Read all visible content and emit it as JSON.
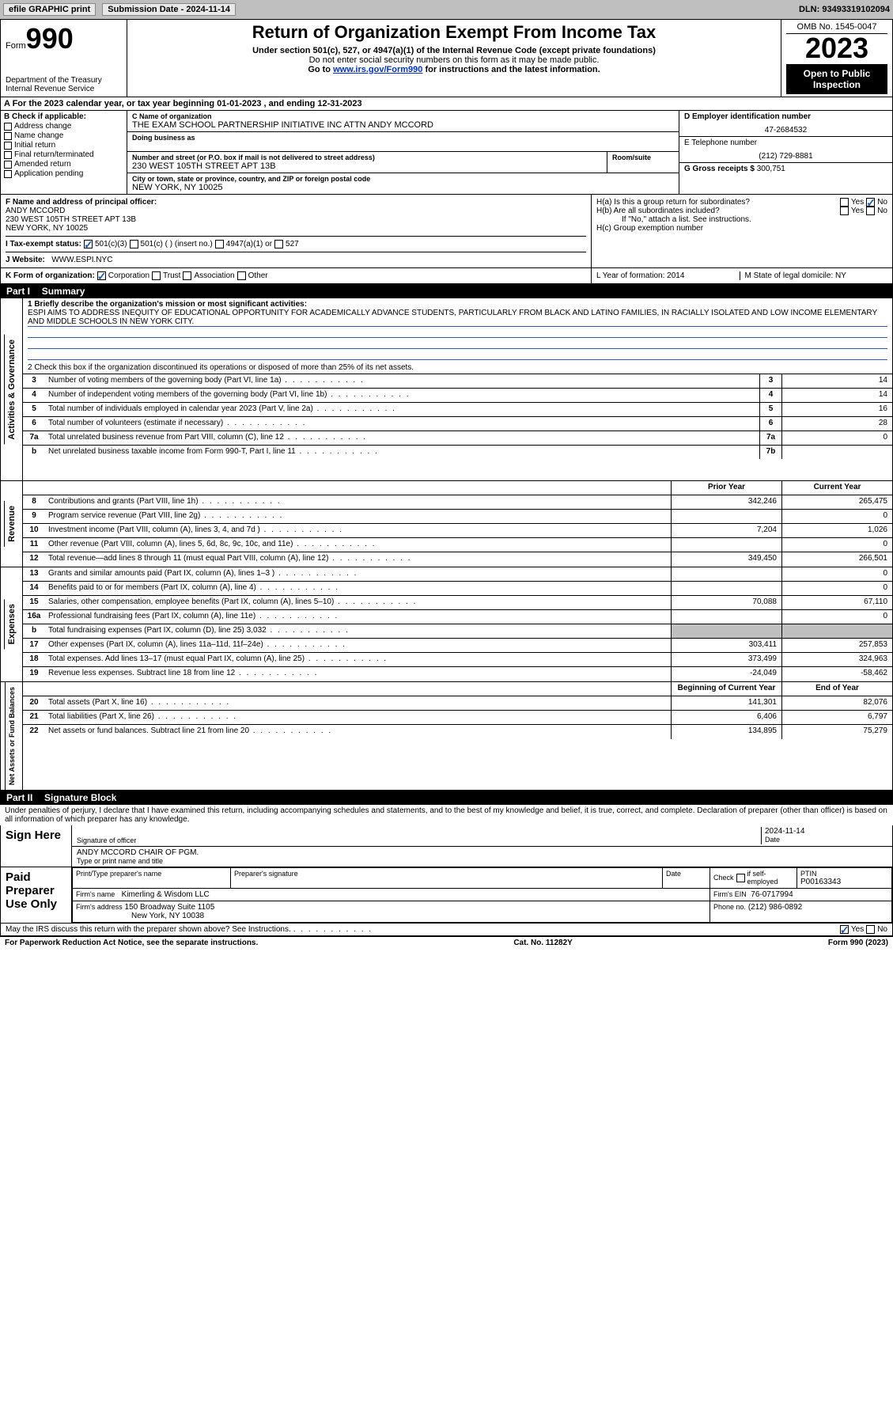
{
  "toolbar": {
    "efile": "efile GRAPHIC print",
    "submission": "Submission Date - 2024-11-14",
    "dln": "DLN: 93493319102094"
  },
  "header": {
    "form_word": "Form",
    "form_num": "990",
    "dept": "Department of the Treasury Internal Revenue Service",
    "title": "Return of Organization Exempt From Income Tax",
    "sub1": "Under section 501(c), 527, or 4947(a)(1) of the Internal Revenue Code (except private foundations)",
    "sub2": "Do not enter social security numbers on this form as it may be made public.",
    "sub3_pre": "Go to ",
    "sub3_link": "www.irs.gov/Form990",
    "sub3_post": " for instructions and the latest information.",
    "omb": "OMB No. 1545-0047",
    "year": "2023",
    "inspect": "Open to Public Inspection"
  },
  "A": {
    "text": "A For the 2023 calendar year, or tax year beginning 01-01-2023   , and ending 12-31-2023"
  },
  "B": {
    "label": "B Check if applicable:",
    "items": [
      "Address change",
      "Name change",
      "Initial return",
      "Final return/terminated",
      "Amended return",
      "Application pending"
    ]
  },
  "C": {
    "label": "C Name of organization",
    "name": "THE EXAM SCHOOL PARTNERSHIP INITIATIVE INC ATTN ANDY MCCORD",
    "dba_label": "Doing business as",
    "street_label": "Number and street (or P.O. box if mail is not delivered to street address)",
    "room_label": "Room/suite",
    "street": "230 WEST 105TH STREET APT 13B",
    "city_label": "City or town, state or province, country, and ZIP or foreign postal code",
    "city": "NEW YORK, NY  10025"
  },
  "D": {
    "label": "D Employer identification number",
    "val": "47-2684532"
  },
  "E": {
    "label": "E Telephone number",
    "val": "(212) 729-8881"
  },
  "G": {
    "label": "G Gross receipts $",
    "val": "300,751"
  },
  "F": {
    "label": "F  Name and address of principal officer:",
    "name": "ANDY MCCORD",
    "addr1": "230 WEST 105TH STREET APT 13B",
    "addr2": "NEW YORK, NY  10025"
  },
  "H": {
    "a": "H(a)  Is this a group return for subordinates?",
    "b": "H(b)  Are all subordinates included?",
    "b_note": "If \"No,\" attach a list. See instructions.",
    "c": "H(c)  Group exemption number",
    "yes": "Yes",
    "no": "No"
  },
  "I": {
    "label": "I   Tax-exempt status:",
    "o1": "501(c)(3)",
    "o2": "501(c) (  ) (insert no.)",
    "o3": "4947(a)(1) or",
    "o4": "527"
  },
  "J": {
    "label": "J   Website:",
    "val": "WWW.ESPI.NYC"
  },
  "K": {
    "label": "K Form of organization:",
    "o1": "Corporation",
    "o2": "Trust",
    "o3": "Association",
    "o4": "Other"
  },
  "L": {
    "label": "L Year of formation: 2014"
  },
  "M": {
    "label": "M State of legal domicile: NY"
  },
  "part1": {
    "label": "Part I",
    "title": "Summary"
  },
  "summary": {
    "l1_label": "1  Briefly describe the organization's mission or most significant activities:",
    "l1_text": "ESPI AIMS TO ADDRESS INEQUITY OF EDUCATIONAL OPPORTUNITY FOR ACADEMICALLY ADVANCE STUDENTS, PARTICULARLY FROM BLACK AND LATINO FAMILIES, IN RACIALLY ISOLATED AND LOW INCOME ELEMENTARY AND MIDDLE SCHOOLS IN NEW YORK CITY.",
    "l2": "2  Check this box      if the organization discontinued its operations or disposed of more than 25% of its net assets.",
    "rows_single": [
      {
        "n": "3",
        "d": "Number of voting members of the governing body (Part VI, line 1a)",
        "b": "3",
        "v": "14"
      },
      {
        "n": "4",
        "d": "Number of independent voting members of the governing body (Part VI, line 1b)",
        "b": "4",
        "v": "14"
      },
      {
        "n": "5",
        "d": "Total number of individuals employed in calendar year 2023 (Part V, line 2a)",
        "b": "5",
        "v": "16"
      },
      {
        "n": "6",
        "d": "Total number of volunteers (estimate if necessary)",
        "b": "6",
        "v": "28"
      },
      {
        "n": "7a",
        "d": "Total unrelated business revenue from Part VIII, column (C), line 12",
        "b": "7a",
        "v": "0"
      },
      {
        "n": "b",
        "d": "Net unrelated business taxable income from Form 990-T, Part I, line 11",
        "b": "7b",
        "v": ""
      }
    ],
    "hdr_prior": "Prior Year",
    "hdr_curr": "Current Year",
    "rev": [
      {
        "n": "8",
        "d": "Contributions and grants (Part VIII, line 1h)",
        "p": "342,246",
        "c": "265,475"
      },
      {
        "n": "9",
        "d": "Program service revenue (Part VIII, line 2g)",
        "p": "",
        "c": "0"
      },
      {
        "n": "10",
        "d": "Investment income (Part VIII, column (A), lines 3, 4, and 7d )",
        "p": "7,204",
        "c": "1,026"
      },
      {
        "n": "11",
        "d": "Other revenue (Part VIII, column (A), lines 5, 6d, 8c, 9c, 10c, and 11e)",
        "p": "",
        "c": "0"
      },
      {
        "n": "12",
        "d": "Total revenue—add lines 8 through 11 (must equal Part VIII, column (A), line 12)",
        "p": "349,450",
        "c": "266,501"
      }
    ],
    "exp": [
      {
        "n": "13",
        "d": "Grants and similar amounts paid (Part IX, column (A), lines 1–3 )",
        "p": "",
        "c": "0"
      },
      {
        "n": "14",
        "d": "Benefits paid to or for members (Part IX, column (A), line 4)",
        "p": "",
        "c": "0"
      },
      {
        "n": "15",
        "d": "Salaries, other compensation, employee benefits (Part IX, column (A), lines 5–10)",
        "p": "70,088",
        "c": "67,110"
      },
      {
        "n": "16a",
        "d": "Professional fundraising fees (Part IX, column (A), line 11e)",
        "p": "",
        "c": "0"
      },
      {
        "n": "b",
        "d": "Total fundraising expenses (Part IX, column (D), line 25) 3,032",
        "p": "GREY",
        "c": "GREY"
      },
      {
        "n": "17",
        "d": "Other expenses (Part IX, column (A), lines 11a–11d, 11f–24e)",
        "p": "303,411",
        "c": "257,853"
      },
      {
        "n": "18",
        "d": "Total expenses. Add lines 13–17 (must equal Part IX, column (A), line 25)",
        "p": "373,499",
        "c": "324,963"
      },
      {
        "n": "19",
        "d": "Revenue less expenses. Subtract line 18 from line 12",
        "p": "-24,049",
        "c": "-58,462"
      }
    ],
    "hdr_beg": "Beginning of Current Year",
    "hdr_end": "End of Year",
    "net": [
      {
        "n": "20",
        "d": "Total assets (Part X, line 16)",
        "p": "141,301",
        "c": "82,076"
      },
      {
        "n": "21",
        "d": "Total liabilities (Part X, line 26)",
        "p": "6,406",
        "c": "6,797"
      },
      {
        "n": "22",
        "d": "Net assets or fund balances. Subtract line 21 from line 20",
        "p": "134,895",
        "c": "75,279"
      }
    ],
    "vlab_ag": "Activities & Governance",
    "vlab_rev": "Revenue",
    "vlab_exp": "Expenses",
    "vlab_net": "Net Assets or Fund Balances"
  },
  "part2": {
    "label": "Part II",
    "title": "Signature Block"
  },
  "sig": {
    "decl": "Under penalties of perjury, I declare that I have examined this return, including accompanying schedules and statements, and to the best of my knowledge and belief, it is true, correct, and complete. Declaration of preparer (other than officer) is based on all information of which preparer has any knowledge.",
    "sign_here": "Sign Here",
    "sig_officer": "Signature of officer",
    "date": "Date",
    "sig_date": "2024-11-14",
    "name_title": "ANDY MCCORD  CHAIR OF PGM.",
    "type_print": "Type or print name and title",
    "paid": "Paid Preparer Use Only",
    "pp_name": "Print/Type preparer's name",
    "pp_sig": "Preparer's signature",
    "pp_date": "Date",
    "pp_check": "Check         if self-employed",
    "ptin_l": "PTIN",
    "ptin": "P00163343",
    "firm_name_l": "Firm's name",
    "firm_name": "Kimerling & Wisdom LLC",
    "firm_ein_l": "Firm's EIN",
    "firm_ein": "76-0717994",
    "firm_addr_l": "Firm's address",
    "firm_addr": "150 Broadway Suite 1105",
    "firm_city": "New York, NY  10038",
    "phone_l": "Phone no.",
    "phone": "(212) 986-0892",
    "discuss": "May the IRS discuss this return with the preparer shown above? See Instructions."
  },
  "footer": {
    "l": "For Paperwork Reduction Act Notice, see the separate instructions.",
    "c": "Cat. No. 11282Y",
    "r": "Form 990 (2023)"
  }
}
